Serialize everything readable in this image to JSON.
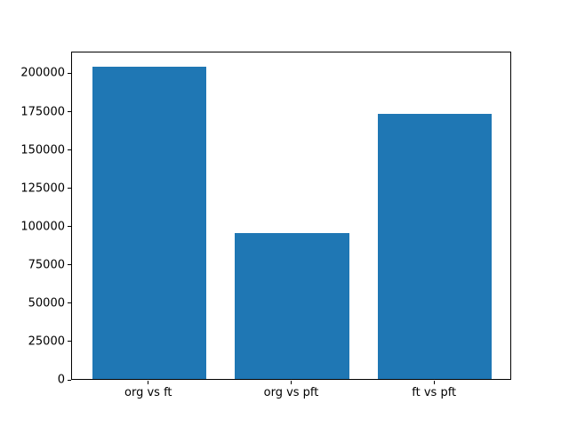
{
  "chart_data": {
    "type": "bar",
    "categories": [
      "org vs ft",
      "org vs pft",
      "ft vs pft"
    ],
    "values": [
      204000,
      95000,
      173000
    ],
    "title": "",
    "xlabel": "",
    "ylabel": "",
    "ylim": [
      0,
      214200
    ],
    "yticks": [
      0,
      25000,
      50000,
      75000,
      100000,
      125000,
      150000,
      175000,
      200000
    ],
    "bar_color": "#1f77b4",
    "bar_width_frac": 0.8,
    "grid": false,
    "legend": null,
    "background_color": "#ffffff",
    "axis_color": "#000000"
  }
}
